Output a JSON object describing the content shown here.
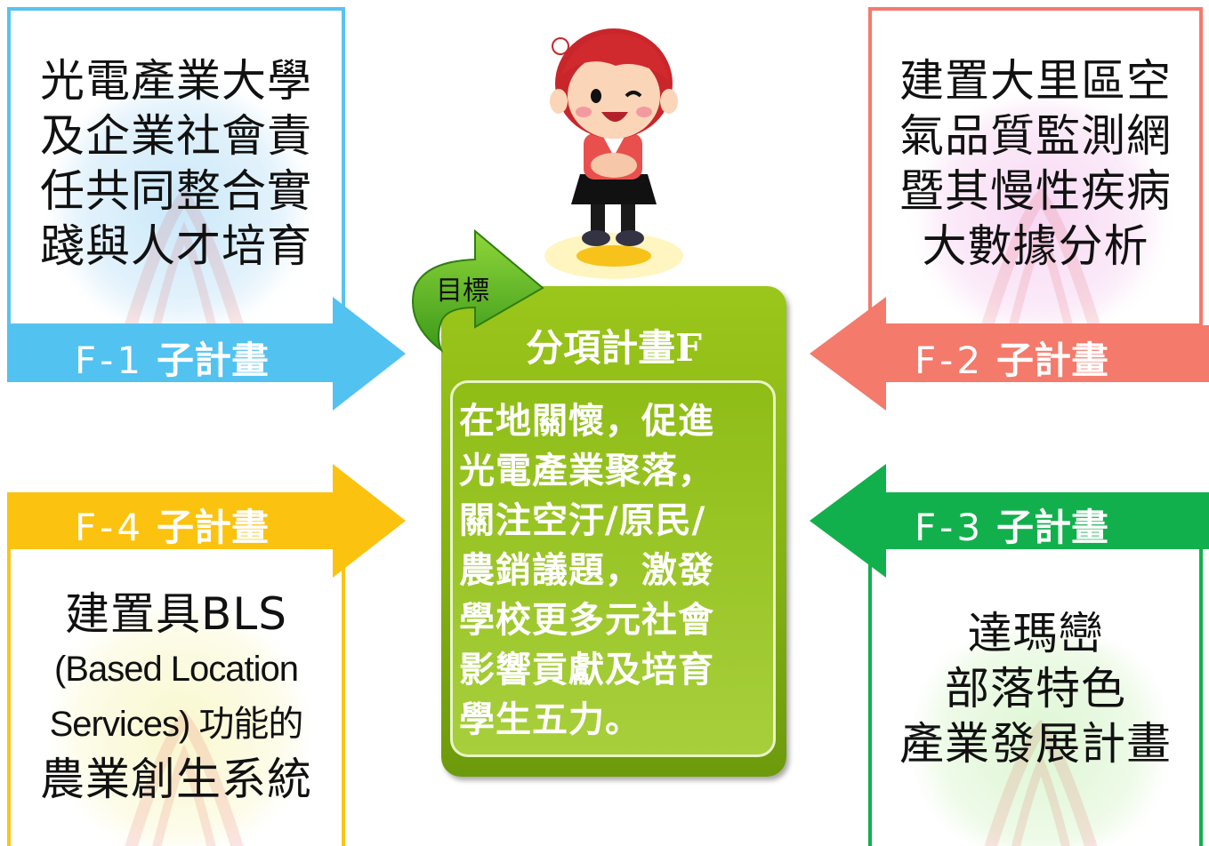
{
  "center": {
    "goal_label": "目標",
    "title": "分項計畫F",
    "lines": [
      "在地關懷，促進",
      "光電產業聚落，",
      "關注空汙/原民/",
      "農銷議題，激發",
      "學校更多元社會",
      "影響貢獻及培育",
      "學生五力。"
    ],
    "color": "#8dbb15"
  },
  "f1": {
    "code": "F-1",
    "sub": "子計畫",
    "color": "#4fc1ee",
    "lines": [
      "光電產業大學",
      "及企業社會責",
      "任共同整合實",
      "踐與人才培育"
    ]
  },
  "f2": {
    "code": "F-2",
    "sub": "子計畫",
    "color": "#f4786b",
    "lines": [
      "建置大里區空",
      "氣品質監測網",
      "暨其慢性疾病",
      "大數據分析"
    ]
  },
  "f3": {
    "code": "F-3",
    "sub": "子計畫",
    "color": "#12b04c",
    "lines": [
      "達瑪巒",
      "部落特色",
      "產業發展計畫"
    ]
  },
  "f4": {
    "code": "F-4",
    "sub": "子計畫",
    "color": "#fbc30f",
    "lines": [
      "建置具BLS",
      "(Based Location",
      "Services) 功能的",
      "農業創生系統"
    ]
  }
}
